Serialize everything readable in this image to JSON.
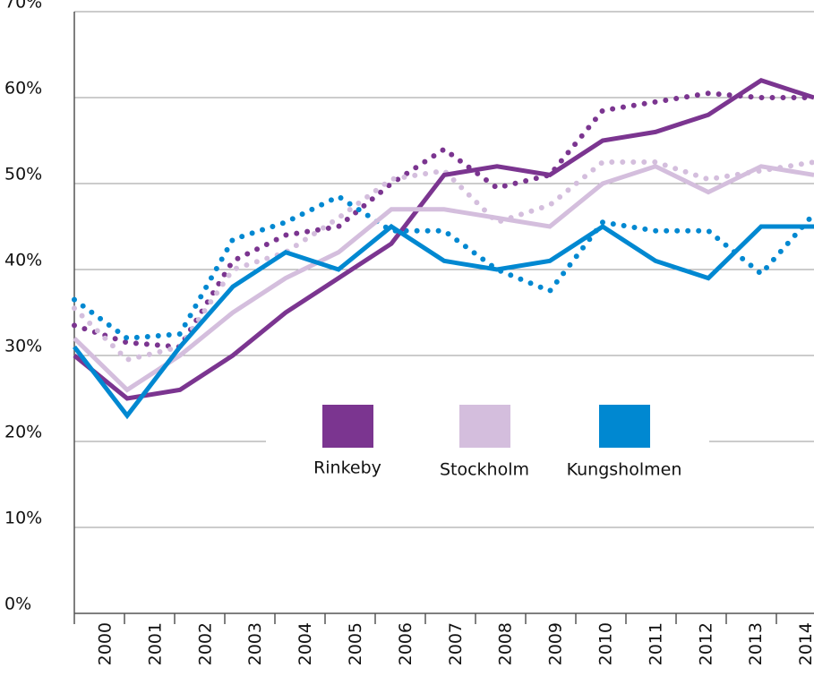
{
  "chart_data": {
    "type": "line",
    "categories": [
      "2000",
      "2001",
      "2002",
      "2003",
      "2004",
      "2005",
      "2006",
      "2007",
      "2008",
      "2009",
      "2010",
      "2011",
      "2012",
      "2013",
      "2014"
    ],
    "series": [
      {
        "name": "Rinkeby",
        "color": "#7b3590",
        "values": [
          30,
          25,
          26,
          30,
          35,
          39,
          43,
          51,
          52,
          51,
          55,
          56,
          58,
          62,
          60
        ],
        "dotted_values": [
          33.5,
          31.5,
          31,
          41,
          44,
          45,
          50,
          54,
          49.5,
          51,
          58.5,
          59.5,
          60.5,
          60,
          60
        ]
      },
      {
        "name": "Stockholm",
        "color": "#d4bedd",
        "values": [
          32,
          26,
          30,
          35,
          39,
          42,
          47,
          47,
          46,
          45,
          50,
          52,
          49,
          52,
          51
        ],
        "dotted_values": [
          35.5,
          29.5,
          31,
          40,
          42,
          46,
          50.5,
          51.5,
          45.5,
          47.5,
          52.5,
          52.5,
          50.5,
          51.5,
          52.5
        ]
      },
      {
        "name": "Kungsholmen",
        "color": "#0088d1",
        "values": [
          31,
          23,
          31,
          38,
          42,
          40,
          45,
          41,
          40,
          41,
          45,
          41,
          39,
          45,
          45
        ],
        "dotted_values": [
          36.5,
          32,
          32.5,
          43.5,
          45.5,
          48.5,
          44.5,
          44.5,
          40,
          37.5,
          45.5,
          44.5,
          44.5,
          39.5,
          46.5
        ]
      }
    ],
    "ylim": [
      0,
      70
    ],
    "yticks": [
      {
        "value": 0,
        "label": "0%"
      },
      {
        "value": 10,
        "label": "10%"
      },
      {
        "value": 20,
        "label": "20%"
      },
      {
        "value": 30,
        "label": "30%"
      },
      {
        "value": 40,
        "label": "40%"
      },
      {
        "value": 50,
        "label": "50%"
      },
      {
        "value": 60,
        "label": "60%"
      },
      {
        "value": 70,
        "label": "70%"
      }
    ],
    "grid": true
  }
}
